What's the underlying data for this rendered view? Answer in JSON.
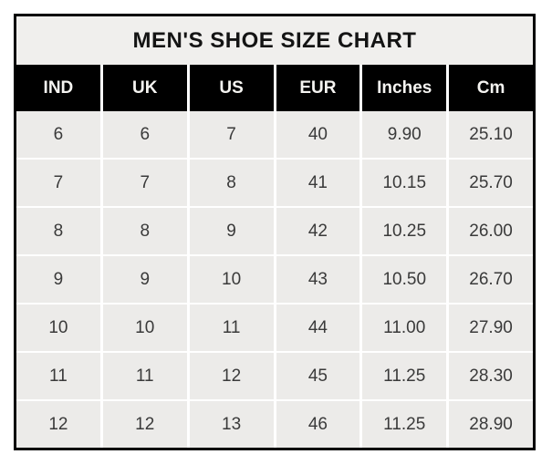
{
  "chart_data": {
    "type": "table",
    "title": "MEN'S SHOE SIZE CHART",
    "columns": [
      "IND",
      "UK",
      "US",
      "EUR",
      "Inches",
      "Cm"
    ],
    "rows": [
      [
        "6",
        "6",
        "7",
        "40",
        "9.90",
        "25.10"
      ],
      [
        "7",
        "7",
        "8",
        "41",
        "10.15",
        "25.70"
      ],
      [
        "8",
        "8",
        "9",
        "42",
        "10.25",
        "26.00"
      ],
      [
        "9",
        "9",
        "10",
        "43",
        "10.50",
        "26.70"
      ],
      [
        "10",
        "10",
        "11",
        "44",
        "11.00",
        "27.90"
      ],
      [
        "11",
        "11",
        "12",
        "45",
        "11.25",
        "28.30"
      ],
      [
        "12",
        "12",
        "13",
        "46",
        "11.25",
        "28.90"
      ]
    ],
    "layout": {
      "legend": "none",
      "grid_lines": "white internal gridlines on light-gray cells",
      "outer_border": "thick black frame",
      "header_style": "black background, white bold text"
    }
  },
  "colors": {
    "page_bg": "#ffffff",
    "title_bg": "#f0efed",
    "title_text": "#141414",
    "header_bg": "#000000",
    "header_text": "#f5f4f1",
    "cell_bg": "#ecebe9",
    "cell_text": "#3a3a3a",
    "grid_line": "#ffffff",
    "border": "#000000"
  }
}
